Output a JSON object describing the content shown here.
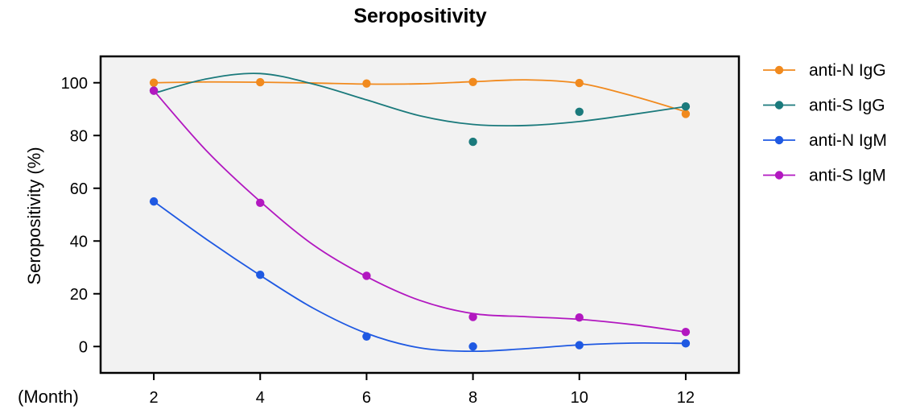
{
  "chart_data": {
    "type": "line",
    "title": "Seropositivity",
    "xlabel": "(Month)",
    "ylabel": "Seropositivity (%)",
    "x": [
      2,
      4,
      6,
      8,
      10,
      12
    ],
    "xticks": [
      "2",
      "4",
      "6",
      "8",
      "10",
      "12"
    ],
    "yticks": [
      "0",
      "20",
      "40",
      "60",
      "80",
      "100"
    ],
    "xlim": [
      1,
      13
    ],
    "ylim": [
      -10,
      110
    ],
    "grid": false,
    "legend_position": "right",
    "plot_background": "#f2f2f2",
    "series": [
      {
        "name": "anti-N IgG",
        "color": "#f18a1e",
        "points": [
          100,
          100.2,
          99.7,
          100.3,
          99.9,
          88.2
        ],
        "fit": [
          [
            2,
            100
          ],
          [
            3,
            100.3
          ],
          [
            4,
            100.2
          ],
          [
            5,
            99.9
          ],
          [
            6,
            99.5
          ],
          [
            7,
            99.6
          ],
          [
            8,
            100.4
          ],
          [
            9,
            101.1
          ],
          [
            10,
            99.8
          ],
          [
            11,
            95
          ],
          [
            12,
            89
          ]
        ]
      },
      {
        "name": "anti-S IgG",
        "color": "#1b7a7c",
        "points": [
          97,
          null,
          null,
          77.6,
          89,
          91
        ],
        "fit": [
          [
            2,
            96
          ],
          [
            3,
            101.5
          ],
          [
            4,
            103.5
          ],
          [
            5,
            99.5
          ],
          [
            6,
            93.5
          ],
          [
            7,
            87.5
          ],
          [
            8,
            84.2
          ],
          [
            9,
            83.8
          ],
          [
            10,
            85.3
          ],
          [
            11,
            88
          ],
          [
            12,
            91
          ]
        ]
      },
      {
        "name": "anti-N IgM",
        "color": "#1f59e2",
        "points": [
          55,
          27.2,
          3.8,
          0,
          0.5,
          1.2
        ],
        "fit": [
          [
            2,
            55
          ],
          [
            3,
            40.5
          ],
          [
            4,
            27
          ],
          [
            5,
            14.5
          ],
          [
            6,
            5
          ],
          [
            7,
            -0.5
          ],
          [
            8,
            -1.8
          ],
          [
            9,
            -0.8
          ],
          [
            10,
            0.6
          ],
          [
            11,
            1.3
          ],
          [
            12,
            1.2
          ]
        ]
      },
      {
        "name": "anti-S IgM",
        "color": "#b218c0",
        "points": [
          97,
          54.5,
          26.8,
          11.2,
          11,
          5.5
        ],
        "fit": [
          [
            2,
            97
          ],
          [
            3,
            74
          ],
          [
            4,
            55
          ],
          [
            5,
            38.5
          ],
          [
            6,
            26.5
          ],
          [
            7,
            17.5
          ],
          [
            8,
            12.5
          ],
          [
            9,
            11.3
          ],
          [
            10,
            10.3
          ],
          [
            11,
            8.3
          ],
          [
            12,
            5.5
          ]
        ]
      }
    ]
  }
}
